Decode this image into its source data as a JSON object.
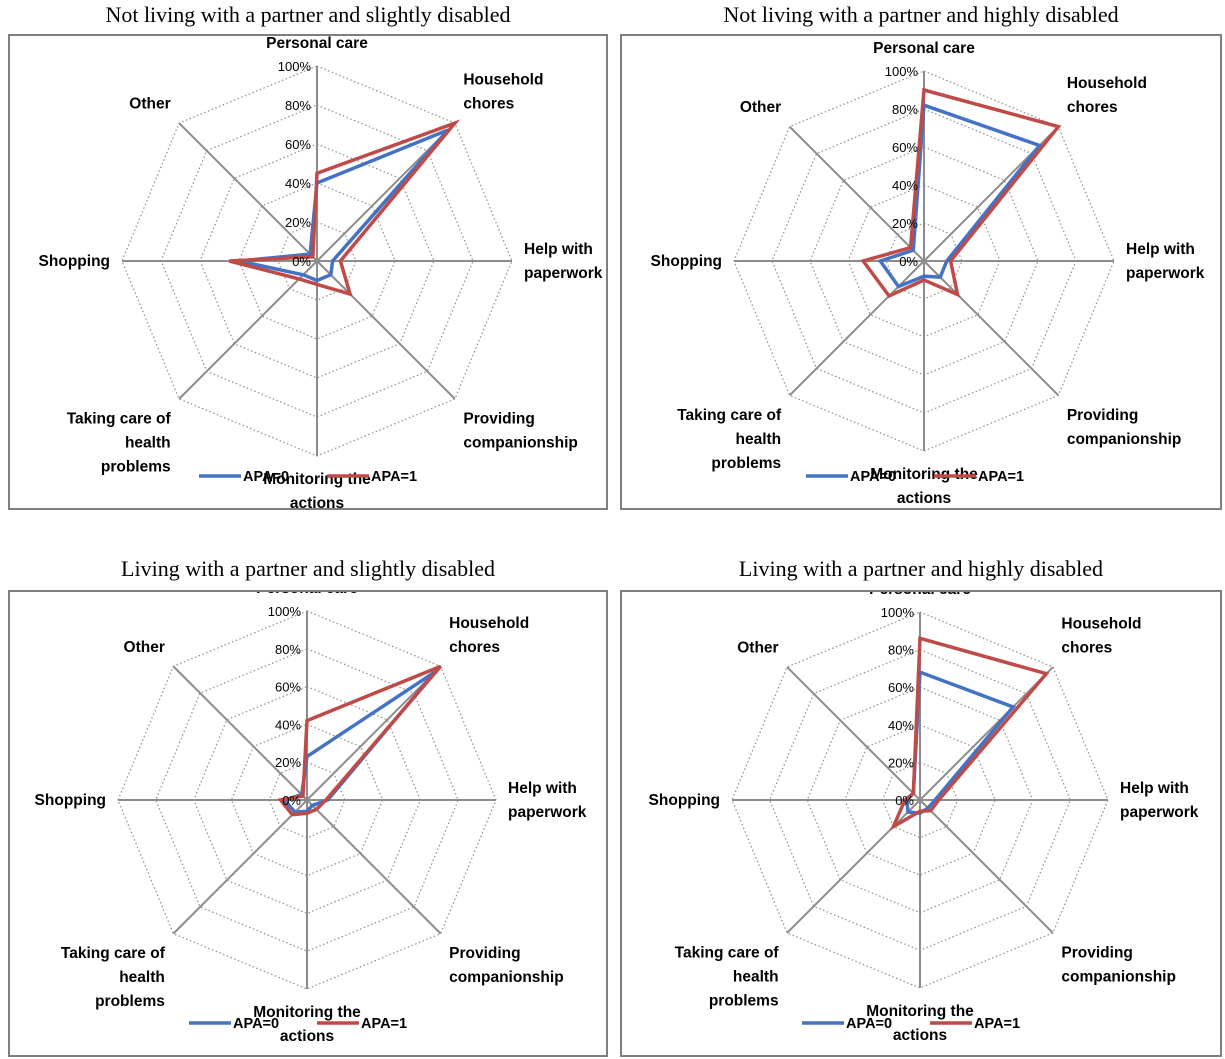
{
  "chart_data": [
    {
      "type": "radar",
      "title": "Not living with a partner and slightly disabled",
      "categories": [
        [
          "Personal care"
        ],
        [
          "Household",
          "chores"
        ],
        [
          "Help with",
          "paperwork"
        ],
        [
          "Providing",
          "companionship"
        ],
        [
          "Monitoring the",
          "actions"
        ],
        [
          "Taking care of",
          "health",
          "problems"
        ],
        [
          "Shopping"
        ],
        [
          "Other"
        ]
      ],
      "tick_labels": [
        "0%",
        "20%",
        "40%",
        "60%",
        "80%",
        "100%"
      ],
      "rlim": [
        0,
        100
      ],
      "grid": true,
      "legend": "bottom",
      "series": [
        {
          "name": "APA=0",
          "color": "#4472c4",
          "values": [
            40,
            95,
            8,
            10,
            10,
            10,
            40,
            5
          ]
        },
        {
          "name": "APA=1",
          "color": "#be4b48",
          "values": [
            45,
            100,
            12,
            24,
            12,
            13,
            45,
            3
          ]
        }
      ]
    },
    {
      "type": "radar",
      "title": "Not living with a partner and highly disabled",
      "categories": [
        [
          "Personal care"
        ],
        [
          "Household",
          "chores"
        ],
        [
          "Help with",
          "paperwork"
        ],
        [
          "Providing",
          "companionship"
        ],
        [
          "Monitoring the",
          "actions"
        ],
        [
          "Taking care of",
          "health",
          "problems"
        ],
        [
          "Shopping"
        ],
        [
          "Other"
        ]
      ],
      "tick_labels": [
        "0%",
        "20%",
        "40%",
        "60%",
        "80%",
        "100%"
      ],
      "rlim": [
        0,
        100
      ],
      "grid": true,
      "legend": "bottom",
      "series": [
        {
          "name": "APA=0",
          "color": "#4472c4",
          "values": [
            82,
            86,
            12,
            12,
            8,
            19,
            23,
            8
          ]
        },
        {
          "name": "APA=1",
          "color": "#be4b48",
          "values": [
            90,
            100,
            14,
            25,
            10,
            26,
            32,
            10
          ]
        }
      ]
    },
    {
      "type": "radar",
      "title": "Living with a partner and slightly disabled",
      "categories": [
        [
          "Personal care"
        ],
        [
          "Household",
          "chores"
        ],
        [
          "Help with",
          "paperwork"
        ],
        [
          "Providing",
          "companionship"
        ],
        [
          "Monitoring the",
          "actions"
        ],
        [
          "Taking care of",
          "health",
          "problems"
        ],
        [
          "Shopping"
        ],
        [
          "Other"
        ]
      ],
      "tick_labels": [
        "0%",
        "20%",
        "40%",
        "60%",
        "80%",
        "100%"
      ],
      "rlim": [
        0,
        100
      ],
      "grid": true,
      "legend": "bottom",
      "series": [
        {
          "name": "APA=0",
          "color": "#4472c4",
          "values": [
            23,
            96,
            11,
            4,
            6,
            9,
            12,
            4
          ]
        },
        {
          "name": "APA=1",
          "color": "#be4b48",
          "values": [
            42,
            100,
            10,
            7,
            7,
            11,
            14,
            3
          ]
        }
      ]
    },
    {
      "type": "radar",
      "title": "Living with a partner and highly disabled",
      "categories": [
        [
          "Personal care"
        ],
        [
          "Household",
          "chores"
        ],
        [
          "Help with",
          "paperwork"
        ],
        [
          "Providing",
          "companionship"
        ],
        [
          "Monitoring the",
          "actions"
        ],
        [
          "Taking care of",
          "health",
          "problems"
        ],
        [
          "Shopping"
        ],
        [
          "Other"
        ]
      ],
      "tick_labels": [
        "0%",
        "20%",
        "40%",
        "60%",
        "80%",
        "100%"
      ],
      "rlim": [
        0,
        100
      ],
      "grid": true,
      "legend": "bottom",
      "series": [
        {
          "name": "APA=0",
          "color": "#4472c4",
          "values": [
            68,
            70,
            8,
            6,
            7,
            9,
            7,
            5
          ]
        },
        {
          "name": "APA=1",
          "color": "#be4b48",
          "values": [
            86,
            95,
            10,
            8,
            6,
            20,
            8,
            5
          ]
        }
      ]
    }
  ]
}
